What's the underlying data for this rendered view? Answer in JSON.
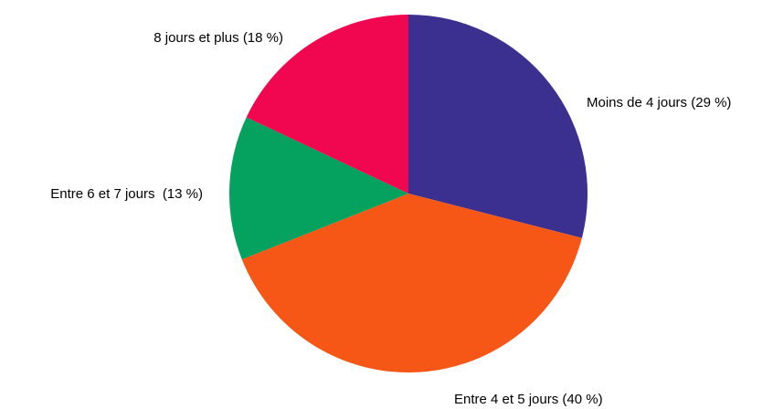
{
  "chart_data": {
    "type": "pie",
    "categories": [
      "Moins de 4 jours",
      "Entre 4 et 5 jours",
      "Entre 6 et 7 jours ",
      "8 jours et plus"
    ],
    "values": [
      29,
      40,
      13,
      18
    ],
    "value_labels": [
      "(29 %)",
      "(40 %)",
      "(13 %)",
      "(18 %)"
    ],
    "colors": [
      "#3b2f8f",
      "#f65716",
      "#05a25f",
      "#f0074f"
    ]
  }
}
